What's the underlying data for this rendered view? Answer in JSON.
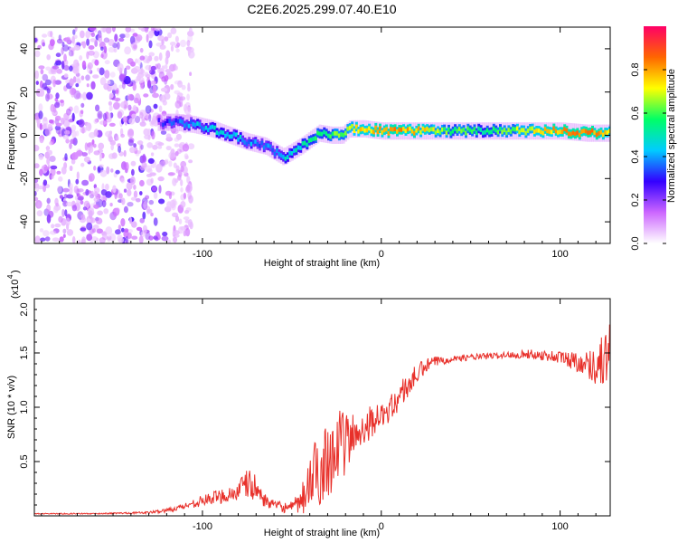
{
  "title": "C2E6.2025.299.07.40.E10",
  "chart_data": [
    {
      "type": "heatmap",
      "name": "spectrogram",
      "xlabel": "Height of straight line (km)",
      "ylabel": "Frequency (Hz)",
      "xlim": [
        -194,
        128
      ],
      "ylim": [
        -50,
        50
      ],
      "xticks": [
        -100,
        0,
        100
      ],
      "xtick_labels": [
        "-100",
        "0",
        "100"
      ],
      "yticks": [
        -40,
        -20,
        0,
        20,
        40
      ],
      "ytick_labels": [
        "-40",
        "-20",
        "0",
        "20",
        "40"
      ],
      "noise_region_x": [
        -194,
        -120
      ],
      "ridge": {
        "x": [
          -125,
          -115,
          -105,
          -95,
          -85,
          -75,
          -65,
          -55,
          -45,
          -35,
          -28,
          -22,
          -18,
          -10,
          0,
          10,
          20,
          40,
          60,
          80,
          100,
          115,
          128
        ],
        "freq": [
          6,
          6,
          5,
          3,
          0,
          -3,
          -5,
          -10,
          -5,
          1,
          0,
          0,
          3,
          3,
          2,
          2,
          2,
          2,
          2,
          2,
          2,
          1,
          1
        ],
        "amplitude": [
          0.25,
          0.35,
          0.4,
          0.45,
          0.45,
          0.4,
          0.35,
          0.45,
          0.5,
          0.55,
          0.6,
          0.65,
          0.7,
          0.75,
          0.8,
          0.8,
          0.75,
          0.6,
          0.55,
          0.7,
          0.8,
          0.85,
          0.7
        ]
      },
      "colorbar": {
        "label": "Normalized spectral amplitude",
        "range": [
          0,
          1
        ],
        "ticks": [
          0.0,
          0.2,
          0.4,
          0.6,
          0.8
        ],
        "tick_labels": [
          "0.0",
          "0.2",
          "0.4",
          "0.6",
          "0.8"
        ],
        "colors": [
          "#ffffff",
          "#cc66ff",
          "#3300ff",
          "#00ccff",
          "#00ff66",
          "#ffff00",
          "#ff6600",
          "#ff0066"
        ]
      }
    },
    {
      "type": "line",
      "name": "snr",
      "xlabel": "Height of straight line (km)",
      "ylabel": "SNR (10 * v/v)",
      "multiplier_label": "(x10",
      "multiplier_exp": "4",
      "multiplier_close": ")",
      "xlim": [
        -194,
        128
      ],
      "ylim": [
        0,
        2.0
      ],
      "xticks": [
        -100,
        0,
        100
      ],
      "xtick_labels": [
        "-100",
        "0",
        "100"
      ],
      "yticks": [
        0.5,
        1.0,
        1.5,
        2.0
      ],
      "ytick_labels": [
        "0.5",
        "1.0",
        "1.5",
        "2.0"
      ],
      "series": [
        {
          "name": "SNR",
          "color": "#e8302a",
          "x": [
            -194,
            -160,
            -130,
            -120,
            -110,
            -100,
            -90,
            -80,
            -75,
            -70,
            -65,
            -60,
            -55,
            -50,
            -45,
            -40,
            -35,
            -30,
            -25,
            -20,
            -15,
            -10,
            -5,
            0,
            5,
            10,
            15,
            20,
            25,
            30,
            40,
            50,
            60,
            70,
            80,
            90,
            100,
            105,
            110,
            115,
            120,
            125,
            128
          ],
          "y": [
            0.02,
            0.02,
            0.03,
            0.05,
            0.09,
            0.14,
            0.18,
            0.22,
            0.3,
            0.25,
            0.14,
            0.1,
            0.08,
            0.07,
            0.12,
            0.3,
            0.42,
            0.55,
            0.62,
            0.68,
            0.73,
            0.82,
            0.88,
            0.92,
            0.98,
            1.1,
            1.2,
            1.3,
            1.38,
            1.42,
            1.45,
            1.46,
            1.47,
            1.48,
            1.49,
            1.48,
            1.46,
            1.44,
            1.42,
            1.4,
            1.38,
            1.45,
            1.5
          ],
          "noise": [
            0.005,
            0.005,
            0.01,
            0.02,
            0.03,
            0.05,
            0.07,
            0.09,
            0.15,
            0.12,
            0.06,
            0.04,
            0.05,
            0.06,
            0.12,
            0.28,
            0.35,
            0.38,
            0.35,
            0.3,
            0.22,
            0.18,
            0.15,
            0.1,
            0.12,
            0.14,
            0.12,
            0.1,
            0.07,
            0.05,
            0.03,
            0.03,
            0.03,
            0.03,
            0.04,
            0.05,
            0.06,
            0.08,
            0.1,
            0.12,
            0.18,
            0.28,
            0.3
          ]
        }
      ]
    }
  ]
}
